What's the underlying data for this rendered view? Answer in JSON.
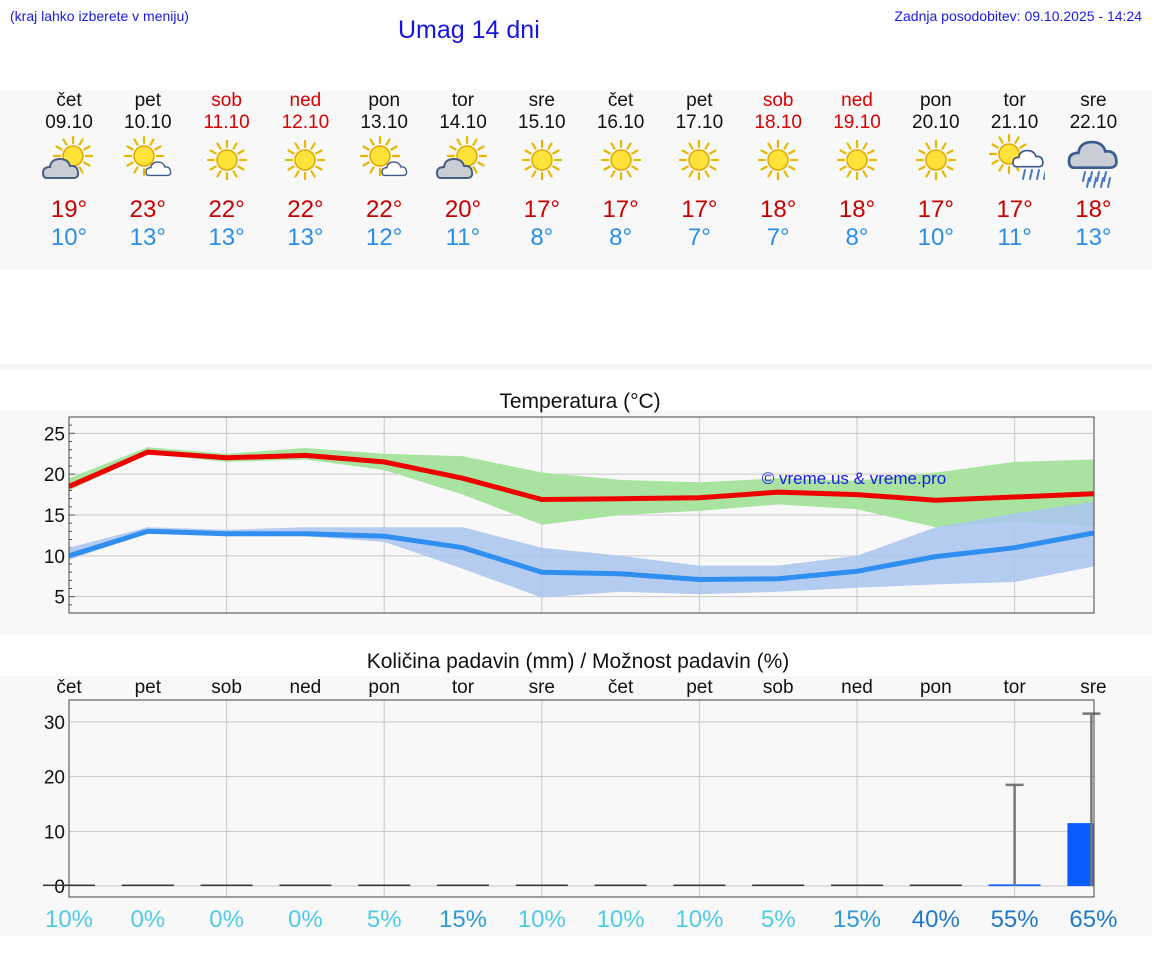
{
  "header": {
    "hint": "(kraj lahko izberete v meniju)",
    "title": "Umag 14 dni",
    "updated": "Zadnja posodobitev: 09.10.2025 - 14:24"
  },
  "days": [
    {
      "name": "čet",
      "date": "09.10",
      "weekend": false,
      "icon": "sun-behind-cloud-icon",
      "tmax": "19°",
      "tmin": "10°"
    },
    {
      "name": "pet",
      "date": "10.10",
      "weekend": false,
      "icon": "sun-small-cloud-icon",
      "tmax": "23°",
      "tmin": "13°"
    },
    {
      "name": "sob",
      "date": "11.10",
      "weekend": true,
      "icon": "sun-icon",
      "tmax": "22°",
      "tmin": "13°"
    },
    {
      "name": "ned",
      "date": "12.10",
      "weekend": true,
      "icon": "sun-icon",
      "tmax": "22°",
      "tmin": "13°"
    },
    {
      "name": "pon",
      "date": "13.10",
      "weekend": false,
      "icon": "sun-small-cloud-icon",
      "tmax": "22°",
      "tmin": "12°"
    },
    {
      "name": "tor",
      "date": "14.10",
      "weekend": false,
      "icon": "sun-behind-cloud-icon",
      "tmax": "20°",
      "tmin": "11°"
    },
    {
      "name": "sre",
      "date": "15.10",
      "weekend": false,
      "icon": "sun-icon",
      "tmax": "17°",
      "tmin": "8°"
    },
    {
      "name": "čet",
      "date": "16.10",
      "weekend": false,
      "icon": "sun-icon",
      "tmax": "17°",
      "tmin": "8°"
    },
    {
      "name": "pet",
      "date": "17.10",
      "weekend": false,
      "icon": "sun-icon",
      "tmax": "17°",
      "tmin": "7°"
    },
    {
      "name": "sob",
      "date": "18.10",
      "weekend": true,
      "icon": "sun-icon",
      "tmax": "18°",
      "tmin": "7°"
    },
    {
      "name": "ned",
      "date": "19.10",
      "weekend": true,
      "icon": "sun-icon",
      "tmax": "18°",
      "tmin": "8°"
    },
    {
      "name": "pon",
      "date": "20.10",
      "weekend": false,
      "icon": "sun-icon",
      "tmax": "17°",
      "tmin": "10°"
    },
    {
      "name": "tor",
      "date": "21.10",
      "weekend": false,
      "icon": "sun-cloud-rain-icon",
      "tmax": "17°",
      "tmin": "11°"
    },
    {
      "name": "sre",
      "date": "22.10",
      "weekend": false,
      "icon": "cloud-rain-icon",
      "tmax": "18°",
      "tmin": "13°"
    }
  ],
  "colors": {
    "max_line": "#ee0000",
    "min_line": "#2f8ef0",
    "max_band": "#a8e4a0",
    "min_band": "#a9c4f0",
    "overlap_band": "#7fb9b0",
    "precip_bar": "#0a5cff",
    "grid": "#c8c8c8",
    "weekend_text": "#d90000",
    "prob_light": "#4fcbe8",
    "prob_dark": "#1f78c8"
  },
  "chart_data": [
    {
      "type": "line",
      "title": "Temperatura (°C)",
      "watermark": "© vreme.us & vreme.pro",
      "x": [
        0,
        1,
        2,
        3,
        4,
        5,
        6,
        7,
        8,
        9,
        10,
        11,
        12,
        13
      ],
      "ylim": [
        3,
        27
      ],
      "yticks": [
        5,
        10,
        15,
        20,
        25
      ],
      "grid": true,
      "series": [
        {
          "name": "max",
          "values": [
            18.5,
            22.7,
            22.0,
            22.3,
            21.5,
            19.5,
            16.9,
            17.0,
            17.1,
            17.8,
            17.5,
            16.8,
            17.2,
            17.6
          ]
        },
        {
          "name": "max_range_high",
          "values": [
            19.5,
            23.3,
            22.5,
            23.2,
            22.5,
            22.2,
            20.2,
            19.3,
            19.0,
            19.5,
            19.2,
            20.2,
            21.5,
            21.8
          ]
        },
        {
          "name": "max_range_low",
          "values": [
            18.0,
            22.5,
            21.5,
            21.8,
            20.5,
            17.5,
            13.8,
            15.0,
            15.5,
            16.3,
            15.7,
            13.5,
            14.2,
            13.6
          ]
        },
        {
          "name": "min",
          "values": [
            10.0,
            13.0,
            12.7,
            12.7,
            12.4,
            11.0,
            8.0,
            7.8,
            7.1,
            7.2,
            8.1,
            9.9,
            11.0,
            12.8
          ]
        },
        {
          "name": "min_range_high",
          "values": [
            11.0,
            13.5,
            13.2,
            13.5,
            13.5,
            13.5,
            11.0,
            10.0,
            8.8,
            8.8,
            10.0,
            13.5,
            15.2,
            16.6
          ]
        },
        {
          "name": "min_range_low",
          "values": [
            9.5,
            12.8,
            12.4,
            12.4,
            11.7,
            8.4,
            4.9,
            5.6,
            5.3,
            5.6,
            6.1,
            6.5,
            6.8,
            8.7
          ]
        }
      ]
    },
    {
      "type": "bar",
      "title": "Količina padavin (mm) / Možnost padavin (%)",
      "categories": [
        "čet",
        "pet",
        "sob",
        "ned",
        "pon",
        "tor",
        "sre",
        "čet",
        "pet",
        "sob",
        "ned",
        "pon",
        "tor",
        "sre"
      ],
      "ylim": [
        -2,
        34
      ],
      "yticks": [
        0,
        10,
        20,
        30
      ],
      "grid": true,
      "values": [
        0,
        0,
        0,
        0,
        0,
        0,
        0,
        0,
        0,
        0,
        0,
        0,
        0.3,
        11.5
      ],
      "error_high": [
        0,
        0,
        0,
        0,
        0,
        0,
        0,
        0,
        0,
        0,
        0,
        0,
        18.5,
        31.5
      ],
      "probability": [
        "10%",
        "0%",
        "0%",
        "0%",
        "5%",
        "15%",
        "10%",
        "10%",
        "10%",
        "5%",
        "15%",
        "40%",
        "55%",
        "65%"
      ],
      "probability_values": [
        10,
        0,
        0,
        0,
        5,
        15,
        10,
        10,
        10,
        5,
        15,
        40,
        55,
        65
      ]
    }
  ]
}
